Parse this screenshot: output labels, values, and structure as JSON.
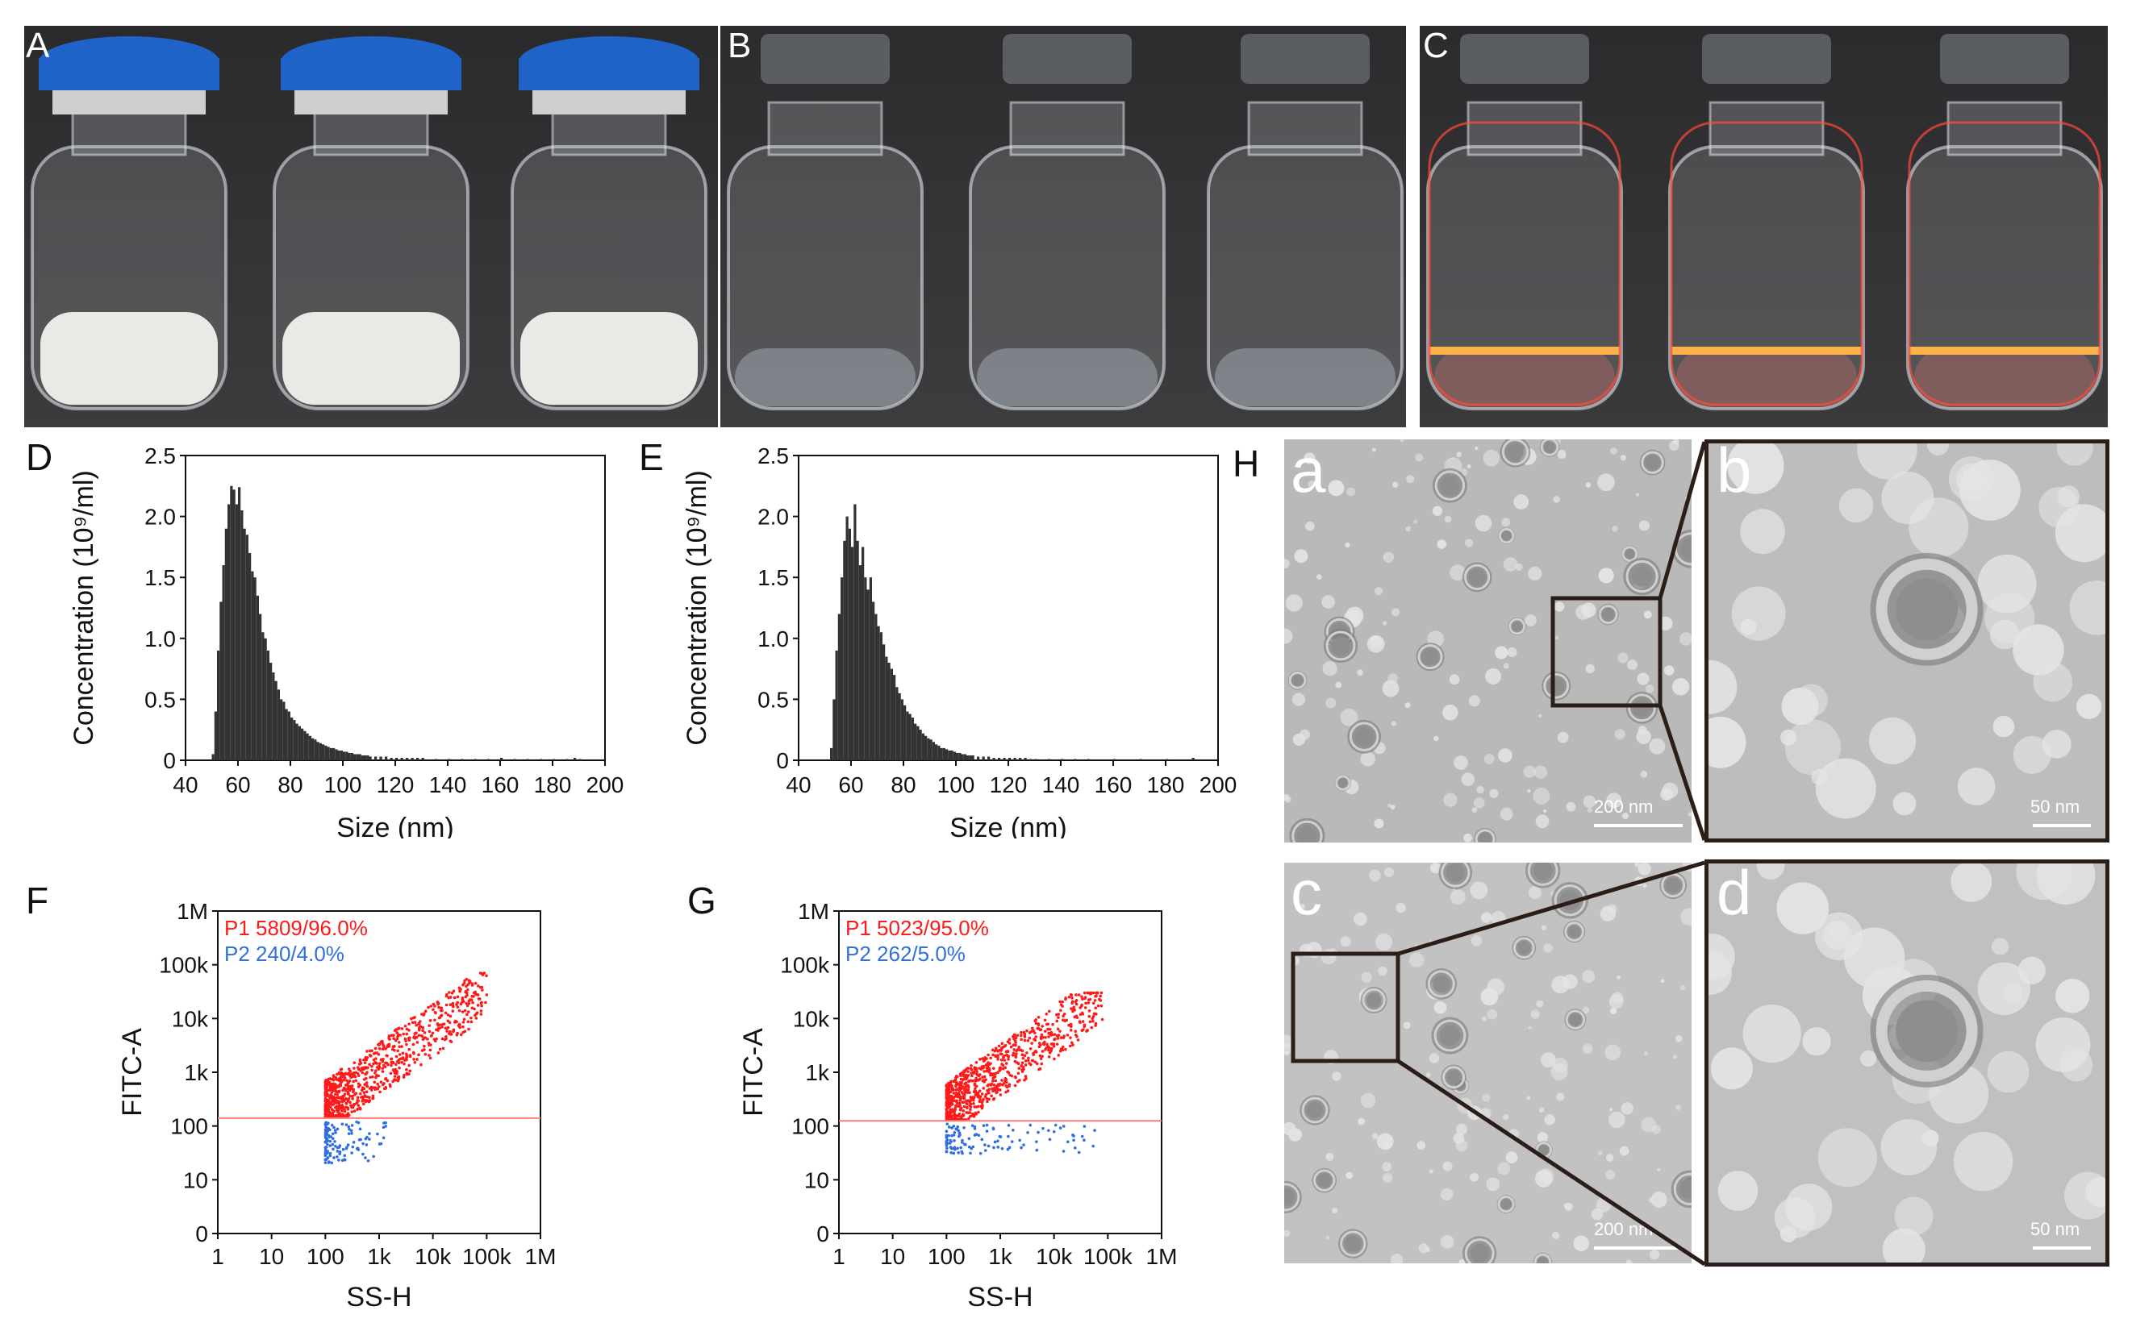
{
  "figure": {
    "panels": {
      "A": "A",
      "B": "B",
      "C": "C",
      "D": "D",
      "E": "E",
      "F": "F",
      "G": "G",
      "H": "H"
    },
    "tem": {
      "subpanels": [
        "a",
        "b",
        "c",
        "d"
      ],
      "scalebars": [
        "200 nm",
        "50 nm",
        "200 nm",
        "50 nm"
      ]
    },
    "colors": {
      "vial_cap_blue": "#1f63c9",
      "vial_cap_gray": "#5a5d62",
      "laser_red": "#ff4a3a",
      "hist_fill": "#333333",
      "p1_color": "#ff1a1a",
      "p2_color": "#2f6fe0",
      "gate_line": "#ff7a7a"
    }
  },
  "chart_data": [
    {
      "type": "bar",
      "id": "D",
      "xlabel": "Size (nm)",
      "ylabel": "Concentration (10⁹/ml)",
      "xlim": [
        40,
        200
      ],
      "ylim": [
        0,
        2.5
      ],
      "xticks": [
        "40",
        "60",
        "80",
        "100",
        "120",
        "140",
        "160",
        "180",
        "200"
      ],
      "yticks": [
        "0",
        "0.5",
        "1.0",
        "1.5",
        "2.0",
        "2.5"
      ],
      "bin_width": 1,
      "x": [
        50,
        51,
        52,
        53,
        54,
        55,
        56,
        57,
        58,
        59,
        60,
        61,
        62,
        63,
        64,
        65,
        66,
        67,
        68,
        69,
        70,
        71,
        72,
        73,
        74,
        75,
        76,
        77,
        78,
        79,
        80,
        81,
        82,
        83,
        84,
        85,
        86,
        87,
        88,
        89,
        90,
        91,
        92,
        93,
        94,
        95,
        96,
        97,
        98,
        99,
        100,
        101,
        102,
        103,
        104,
        105,
        106,
        107,
        108,
        109,
        110,
        112,
        114,
        116,
        118,
        120,
        122,
        124,
        126,
        128,
        130,
        135,
        140,
        145,
        150,
        155,
        160,
        165,
        170,
        175,
        180,
        185,
        188,
        190
      ],
      "values": [
        0.05,
        0.4,
        0.9,
        1.3,
        1.6,
        1.9,
        2.1,
        2.25,
        2.22,
        2.1,
        2.24,
        2.05,
        1.9,
        1.85,
        1.7,
        1.55,
        1.5,
        1.35,
        1.2,
        1.05,
        1.0,
        0.9,
        0.8,
        0.72,
        0.65,
        0.58,
        0.5,
        0.48,
        0.42,
        0.4,
        0.35,
        0.33,
        0.3,
        0.28,
        0.26,
        0.24,
        0.22,
        0.2,
        0.18,
        0.17,
        0.15,
        0.14,
        0.13,
        0.12,
        0.11,
        0.1,
        0.1,
        0.09,
        0.08,
        0.08,
        0.07,
        0.07,
        0.06,
        0.06,
        0.05,
        0.05,
        0.05,
        0.04,
        0.04,
        0.04,
        0.03,
        0.03,
        0.03,
        0.03,
        0.02,
        0.02,
        0.02,
        0.02,
        0.02,
        0.02,
        0.02,
        0.01,
        0.01,
        0.01,
        0.01,
        0.01,
        0.02,
        0.01,
        0.01,
        0.01,
        0.01,
        0.01,
        0.02,
        0.01
      ]
    },
    {
      "type": "bar",
      "id": "E",
      "xlabel": "Size (nm)",
      "ylabel": "Concentration (10⁹/ml)",
      "xlim": [
        40,
        200
      ],
      "ylim": [
        0,
        2.5
      ],
      "xticks": [
        "40",
        "60",
        "80",
        "100",
        "120",
        "140",
        "160",
        "180",
        "200"
      ],
      "yticks": [
        "0",
        "0.5",
        "1.0",
        "1.5",
        "2.0",
        "2.5"
      ],
      "bin_width": 1,
      "x": [
        52,
        53,
        54,
        55,
        56,
        57,
        58,
        59,
        60,
        61,
        62,
        63,
        64,
        65,
        66,
        67,
        68,
        69,
        70,
        71,
        72,
        73,
        74,
        75,
        76,
        77,
        78,
        79,
        80,
        81,
        82,
        83,
        84,
        85,
        86,
        87,
        88,
        89,
        90,
        91,
        92,
        93,
        94,
        95,
        96,
        97,
        98,
        99,
        100,
        101,
        102,
        103,
        104,
        105,
        106,
        108,
        110,
        112,
        114,
        116,
        118,
        120,
        122,
        124,
        126,
        128,
        130,
        135,
        140,
        145,
        150,
        160,
        170,
        180,
        190
      ],
      "values": [
        0.1,
        0.5,
        0.9,
        1.2,
        1.5,
        1.8,
        2.0,
        1.9,
        1.75,
        2.1,
        1.8,
        1.6,
        1.75,
        1.5,
        1.4,
        1.5,
        1.3,
        1.2,
        1.1,
        1.05,
        0.95,
        0.85,
        0.8,
        0.75,
        0.7,
        0.6,
        0.55,
        0.5,
        0.45,
        0.4,
        0.38,
        0.35,
        0.3,
        0.28,
        0.25,
        0.22,
        0.2,
        0.18,
        0.17,
        0.15,
        0.13,
        0.12,
        0.1,
        0.1,
        0.09,
        0.08,
        0.08,
        0.07,
        0.06,
        0.06,
        0.05,
        0.05,
        0.04,
        0.04,
        0.04,
        0.03,
        0.03,
        0.03,
        0.02,
        0.02,
        0.02,
        0.02,
        0.02,
        0.02,
        0.02,
        0.01,
        0.01,
        0.01,
        0.01,
        0.01,
        0.01,
        0.01,
        0.01,
        0.01,
        0.02
      ]
    },
    {
      "type": "scatter",
      "id": "F",
      "xlabel": "SS-H",
      "ylabel": "FITC-A",
      "x_scale": "log",
      "y_scale": "log",
      "xlim": [
        1,
        1000000
      ],
      "ylim": [
        1,
        1000000
      ],
      "xticks": [
        "1",
        "10",
        "100",
        "1k",
        "10k",
        "100k",
        "1M"
      ],
      "yticks": [
        "0",
        "10",
        "100",
        "1k",
        "10k",
        "100k",
        "1M"
      ],
      "gate_y": 140,
      "series": [
        {
          "name": "P1",
          "label": "P1 5809/96.0%",
          "count": 5809,
          "percent": "96.0%",
          "color": "#ff1a1a",
          "x_range": [
            100,
            100000
          ],
          "y_range": [
            140,
            70000
          ]
        },
        {
          "name": "P2",
          "label": "P2 240/4.0%",
          "count": 240,
          "percent": "4.0%",
          "color": "#2f6fe0",
          "x_range": [
            100,
            1500
          ],
          "y_range": [
            20,
            120
          ]
        }
      ]
    },
    {
      "type": "scatter",
      "id": "G",
      "xlabel": "SS-H",
      "ylabel": "FITC-A",
      "x_scale": "log",
      "y_scale": "log",
      "xlim": [
        1,
        1000000
      ],
      "ylim": [
        1,
        1000000
      ],
      "xticks": [
        "1",
        "10",
        "100",
        "1k",
        "10k",
        "100k",
        "1M"
      ],
      "yticks": [
        "0",
        "10",
        "100",
        "1k",
        "10k",
        "100k",
        "1M"
      ],
      "gate_y": 125,
      "series": [
        {
          "name": "P1",
          "label": "P1 5023/95.0%",
          "count": 5023,
          "percent": "95.0%",
          "color": "#ff1a1a",
          "x_range": [
            100,
            80000
          ],
          "y_range": [
            125,
            30000
          ]
        },
        {
          "name": "P2",
          "label": "P2 262/5.0%",
          "count": 262,
          "percent": "5.0%",
          "color": "#2f6fe0",
          "x_range": [
            100,
            60000
          ],
          "y_range": [
            30,
            110
          ]
        }
      ]
    }
  ]
}
